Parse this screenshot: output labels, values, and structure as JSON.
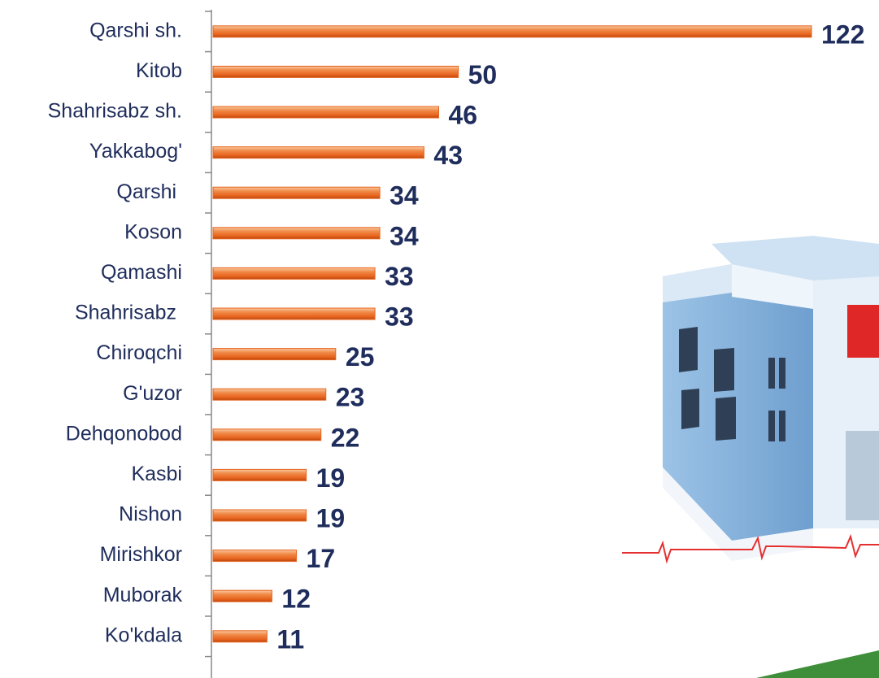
{
  "chart_data": {
    "type": "barh",
    "categories": [
      "Qarshi sh.",
      "Kitob",
      "Shahrisabz sh.",
      "Yakkabog'",
      "Qarshi ",
      "Koson",
      "Qamashi",
      "Shahrisabz ",
      "Chiroqchi",
      "G'uzor",
      "Dehqonobod",
      "Kasbi",
      "Nishon",
      "Mirishkor",
      "Muborak",
      "Ko'kdala"
    ],
    "values": [
      122,
      50,
      46,
      43,
      34,
      34,
      33,
      33,
      25,
      23,
      22,
      19,
      19,
      17,
      12,
      11
    ],
    "color": "#e8641e",
    "xlim": [
      0,
      122
    ]
  }
}
